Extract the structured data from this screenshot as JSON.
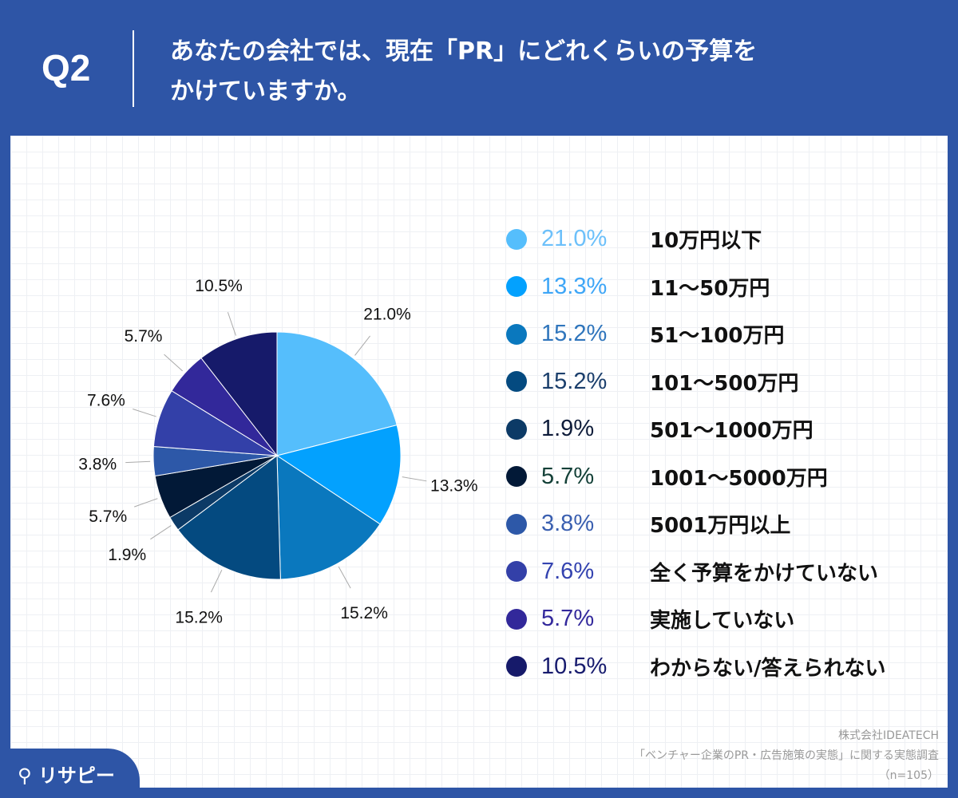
{
  "header": {
    "q": "Q2",
    "title_line1": "あなたの会社では、現在「PR」にどれくらいの予算を",
    "title_line2": "かけていますか。"
  },
  "chart_data": {
    "type": "pie",
    "start": "top",
    "direction": "clockwise",
    "categories": [
      "10万円以下",
      "11〜50万円",
      "51〜100万円",
      "101〜500万円",
      "501〜1000万円",
      "1001〜5000万円",
      "5001万円以上",
      "全く予算をかけていない",
      "実施していない",
      "わからない/答えられない"
    ],
    "values": [
      21.0,
      13.3,
      15.2,
      15.2,
      1.9,
      5.7,
      3.8,
      7.6,
      5.7,
      10.5
    ],
    "labels": [
      "21.0%",
      "13.3%",
      "15.2%",
      "15.2%",
      "1.9%",
      "5.7%",
      "3.8%",
      "7.6%",
      "5.7%",
      "10.5%"
    ],
    "colors": [
      "#55BEFC",
      "#03A1FE",
      "#0A78BE",
      "#044A80",
      "#0C3A66",
      "#021937",
      "#2D58A8",
      "#3340A8",
      "#32289A",
      "#161A6A"
    ],
    "legend_text_colors": [
      "#6CC0FA",
      "#3EA6F7",
      "#2F75BC",
      "#1B3F6C",
      "#0E1C3A",
      "#134037",
      "#3A5FB0",
      "#3443B0",
      "#33299C",
      "#171B6E"
    ],
    "legend_placement": "right"
  },
  "source": {
    "line1": "株式会社IDEATECH",
    "line2": "「ベンチャー企業のPR・広告施策の実態」に関する実態調査",
    "line3": "（n=105）"
  },
  "logo": "リサピー"
}
